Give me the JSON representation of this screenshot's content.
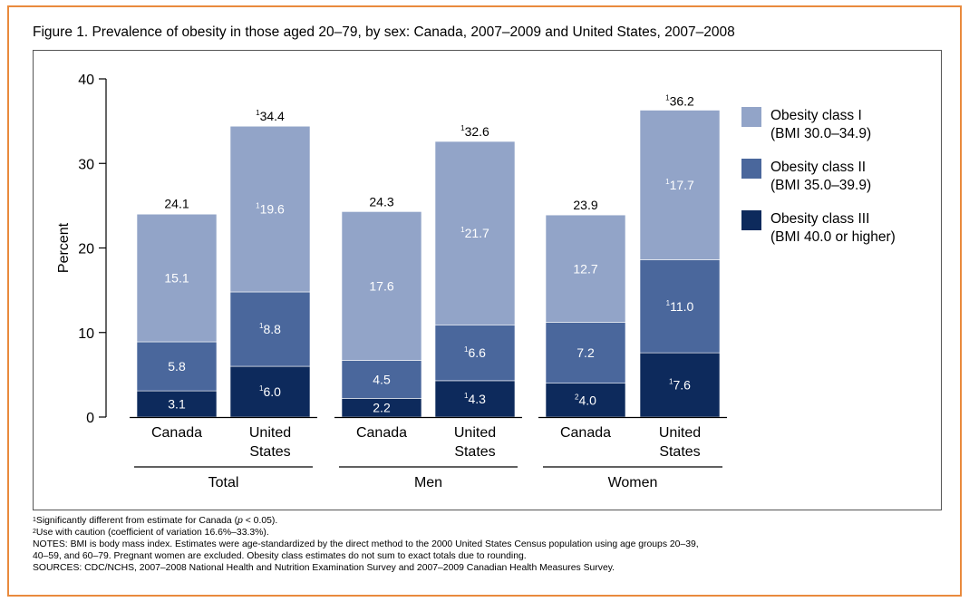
{
  "chart_data": {
    "type": "bar",
    "stacked": true,
    "title": "Figure 1. Prevalence of obesity in those aged 20–79, by sex: Canada, 2007–2009 and United States, 2007–2008",
    "ylabel": "Percent",
    "ylim": [
      0,
      40
    ],
    "yticks": [
      "0",
      "10",
      "20",
      "30",
      "40"
    ],
    "legend_position": "right",
    "groups": [
      {
        "label": "Total",
        "categories": [
          "Canada",
          "United|States"
        ]
      },
      {
        "label": "Men",
        "categories": [
          "Canada",
          "United|States"
        ]
      },
      {
        "label": "Women",
        "categories": [
          "Canada",
          "United|States"
        ]
      }
    ],
    "categories": [
      "Canada",
      "United States",
      "Canada",
      "United States",
      "Canada",
      "United States"
    ],
    "series": [
      {
        "name": "Obesity class III",
        "name_line2": "(BMI 40.0 or higher)",
        "color": "#0d2a5c",
        "values": [
          3.1,
          6.0,
          2.2,
          4.3,
          4.0,
          7.6
        ],
        "labels": [
          "3.1",
          "6.0",
          "2.2",
          "4.3",
          "4.0",
          "7.6"
        ],
        "marks": [
          "",
          "1",
          "",
          "1",
          "2",
          "1"
        ]
      },
      {
        "name": "Obesity class II",
        "name_line2": "(BMI 35.0–39.9)",
        "color": "#4a679c",
        "values": [
          5.8,
          8.8,
          4.5,
          6.6,
          7.2,
          11.0
        ],
        "labels": [
          "5.8",
          "8.8",
          "4.5",
          "6.6",
          "7.2",
          "11.0"
        ],
        "marks": [
          "",
          "1",
          "",
          "1",
          "",
          "1"
        ]
      },
      {
        "name": "Obesity class I",
        "name_line2": "(BMI 30.0–34.9)",
        "color": "#92a4c8",
        "values": [
          15.1,
          19.6,
          17.6,
          21.7,
          12.7,
          17.7
        ],
        "labels": [
          "15.1",
          "19.6",
          "17.6",
          "21.7",
          "12.7",
          "17.7"
        ],
        "marks": [
          "",
          "1",
          "",
          "1",
          "",
          "1"
        ]
      }
    ],
    "totals": {
      "values": [
        24.1,
        34.4,
        24.3,
        32.6,
        23.9,
        36.2
      ],
      "labels": [
        "24.1",
        "34.4",
        "24.3",
        "32.6",
        "23.9",
        "36.2"
      ],
      "marks": [
        "",
        "1",
        "",
        "1",
        "",
        "1"
      ]
    }
  },
  "notes": {
    "fn1_mark": "1",
    "fn1_a": "Significantly different from estimate for Canada (",
    "fn1_p": "p",
    "fn1_b": " < 0.05).",
    "fn2_mark": "2",
    "fn2": "Use with caution (coefficient of variation 16.6%–33.3%).",
    "line3": "NOTES: BMI is body mass index. Estimates were age-standardized by the direct method to the 2000 United States Census population using age groups 20–39,",
    "line4": "40–59, and 60–79. Pregnant women are excluded. Obesity class estimates do not sum to exact totals due to rounding.",
    "line5": "SOURCES: CDC/NCHS, 2007–2008 National Health and Nutrition Examination Survey and 2007–2009 Canadian Health Measures Survey."
  }
}
